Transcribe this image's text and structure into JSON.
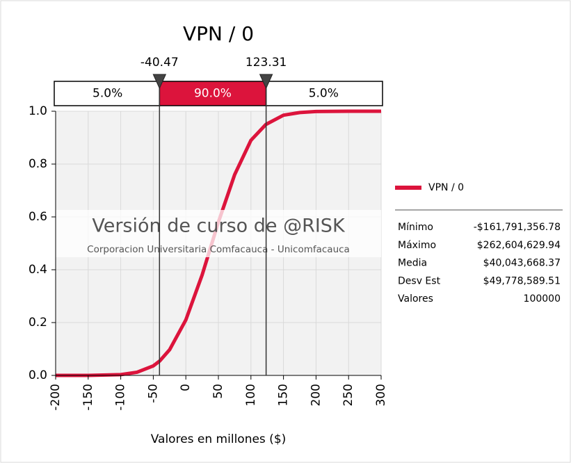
{
  "chart_data": {
    "type": "line",
    "title": "VPN / 0",
    "x_label": "Valores en millones ($)",
    "xlim": [
      -200,
      300
    ],
    "xticks": [
      -200,
      -150,
      -100,
      -50,
      0,
      50,
      100,
      150,
      200,
      250,
      300
    ],
    "ylim": [
      0,
      1
    ],
    "yticks": [
      {
        "value": 0,
        "label": "0.0"
      },
      0.2,
      0.4,
      0.6,
      0.8,
      {
        "value": 1,
        "label": "1.0"
      }
    ],
    "grid": true,
    "series": [
      {
        "name": "VPN / 0",
        "color": "#dc143c",
        "x": [
          -200,
          -150,
          -100,
          -75,
          -50,
          -40,
          -25,
          0,
          25,
          40,
          50,
          75,
          100,
          123,
          150,
          175,
          200,
          250,
          300
        ],
        "values": [
          0,
          0,
          0.003,
          0.012,
          0.036,
          0.055,
          0.097,
          0.21,
          0.38,
          0.5,
          0.58,
          0.76,
          0.89,
          0.95,
          0.985,
          0.995,
          0.999,
          1,
          1
        ]
      }
    ],
    "delimiters": [
      -40.47,
      123.31
    ],
    "bands": {
      "values": [
        5,
        90,
        5
      ],
      "value_labels": [
        "5.0%",
        "90.0%",
        "5.0%"
      ]
    },
    "watermark": {
      "title": "Versión de curso de @RISK",
      "subtitle": "Corporacion Universitaria Comfacauca - Unicomfacauca"
    },
    "stats": {
      "names": [
        "Mínimo",
        "Máximo",
        "Media",
        "Desv Est",
        "Valores"
      ],
      "values": [
        -161791356.78,
        262604629.94,
        40043668.37,
        49778589.51,
        100000
      ],
      "value_labels": [
        "-$161,791,356.78",
        "$262,604,629.94",
        "$40,043,668.37",
        "$49,778,589.51",
        "100000"
      ]
    }
  }
}
